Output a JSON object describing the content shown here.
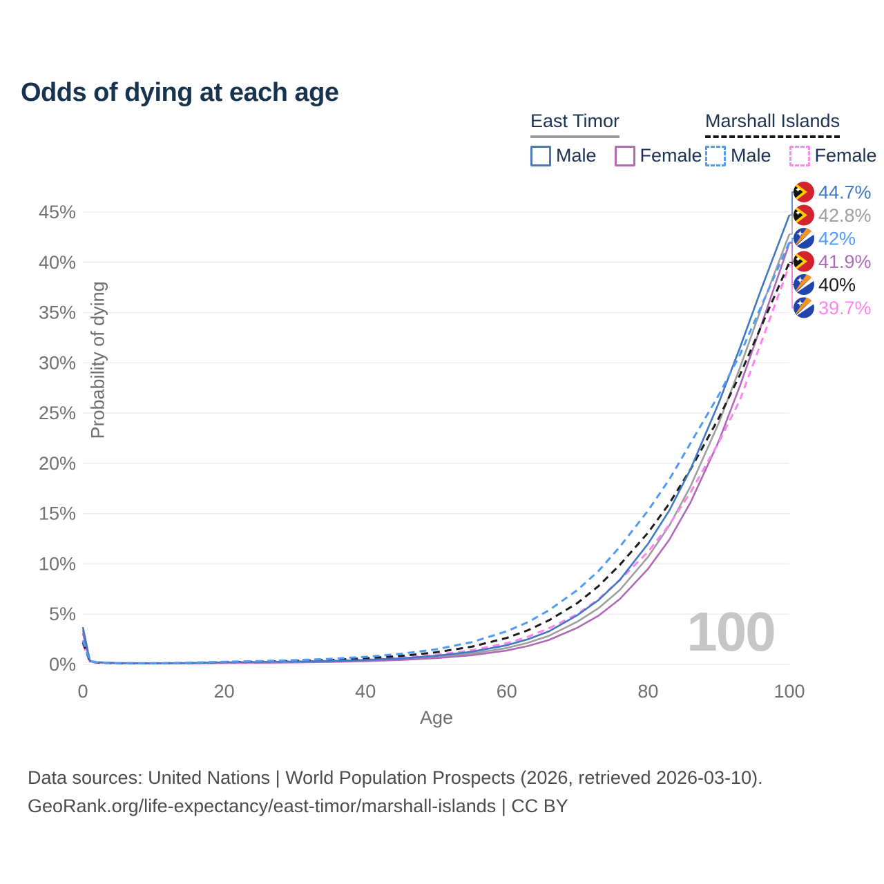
{
  "page": {
    "title": "Odds of dying at each age"
  },
  "legend": {
    "groups": [
      {
        "name": "East Timor",
        "line_style": "solid",
        "underline_color": "#9b9b9b",
        "items": [
          {
            "label": "Male",
            "color": "#4e79b8"
          },
          {
            "label": "Female",
            "color": "#b06bb3"
          }
        ]
      },
      {
        "name": "Marshall Islands",
        "line_style": "dashed",
        "underline_color": "#161616",
        "items": [
          {
            "label": "Male",
            "color": "#4f9bf8"
          },
          {
            "label": "Female",
            "color": "#ff85f0"
          }
        ]
      }
    ]
  },
  "watermark": "100",
  "footer": {
    "line1": "Data sources: United Nations | World Population Prospects (2026, retrieved 2026-03-10).",
    "line2": "GeoRank.org/life-expectancy/east-timor/marshall-islands | CC BY"
  },
  "chart_data": {
    "type": "line",
    "title": "Odds of dying at each age",
    "xlabel": "Age",
    "ylabel": "Probability of dying",
    "x_ticks": [
      0,
      20,
      40,
      60,
      80,
      100
    ],
    "y_ticks_percent": [
      0,
      5,
      10,
      15,
      20,
      25,
      30,
      35,
      40,
      45
    ],
    "xlim": [
      0,
      100
    ],
    "ylim_percent": [
      0,
      47
    ],
    "grid": "horizontal",
    "x": [
      0,
      1,
      2,
      5,
      10,
      15,
      20,
      25,
      30,
      35,
      40,
      45,
      50,
      55,
      60,
      63,
      66,
      70,
      73,
      76,
      80,
      83,
      86,
      90,
      93,
      96,
      100
    ],
    "series": [
      {
        "name": "East Timor Male",
        "country": "East Timor",
        "sex": "Male",
        "flag": "east-timor",
        "color": "#3f78c5",
        "dashed": false,
        "end_label": "44.7%",
        "end_value": 44.7,
        "values": [
          3.7,
          0.35,
          0.22,
          0.13,
          0.11,
          0.14,
          0.2,
          0.24,
          0.28,
          0.34,
          0.44,
          0.6,
          0.85,
          1.25,
          1.9,
          2.5,
          3.3,
          4.9,
          6.4,
          8.4,
          12.0,
          15.3,
          19.4,
          26.0,
          31.5,
          37.3,
          44.7
        ]
      },
      {
        "name": "East Timor Both sexes",
        "country": "East Timor",
        "sex": "Both",
        "flag": "east-timor",
        "color": "#9e9e9e",
        "dashed": false,
        "end_label": "42.8%",
        "end_value": 42.8,
        "values": [
          3.4,
          0.32,
          0.2,
          0.12,
          0.1,
          0.12,
          0.17,
          0.2,
          0.24,
          0.29,
          0.38,
          0.52,
          0.73,
          1.07,
          1.63,
          2.15,
          2.85,
          4.25,
          5.6,
          7.4,
          10.7,
          13.8,
          17.7,
          24.0,
          29.5,
          35.4,
          42.8
        ]
      },
      {
        "name": "Marshall Islands Male",
        "country": "Marshall Islands",
        "sex": "Male",
        "flag": "marshall-islands",
        "color": "#4f9bf8",
        "dashed": true,
        "end_label": "42%",
        "end_value": 42.0,
        "values": [
          2.4,
          0.3,
          0.2,
          0.13,
          0.12,
          0.17,
          0.26,
          0.33,
          0.42,
          0.55,
          0.75,
          1.05,
          1.5,
          2.2,
          3.3,
          4.2,
          5.4,
          7.4,
          9.3,
          11.7,
          15.3,
          18.4,
          22.0,
          26.8,
          30.8,
          35.6,
          42.0
        ]
      },
      {
        "name": "East Timor Female",
        "country": "East Timor",
        "sex": "Female",
        "flag": "east-timor",
        "color": "#ad6bb5",
        "dashed": false,
        "end_label": "41.9%",
        "end_value": 41.9,
        "values": [
          3.1,
          0.29,
          0.18,
          0.11,
          0.09,
          0.1,
          0.14,
          0.16,
          0.19,
          0.24,
          0.32,
          0.44,
          0.62,
          0.91,
          1.38,
          1.83,
          2.44,
          3.65,
          4.85,
          6.5,
          9.5,
          12.4,
          16.1,
          22.2,
          27.7,
          33.7,
          41.9
        ]
      },
      {
        "name": "Marshall Islands Both sexes",
        "country": "Marshall Islands",
        "sex": "Both",
        "flag": "marshall-islands",
        "color": "#1c1c1c",
        "dashed": true,
        "end_label": "40%",
        "end_value": 40.0,
        "values": [
          2.2,
          0.28,
          0.18,
          0.12,
          0.11,
          0.14,
          0.21,
          0.27,
          0.34,
          0.44,
          0.6,
          0.84,
          1.2,
          1.75,
          2.63,
          3.4,
          4.4,
          6.1,
          7.8,
          9.9,
          13.1,
          16.0,
          19.4,
          24.5,
          28.8,
          33.6,
          40.0
        ]
      },
      {
        "name": "Marshall Islands Female",
        "country": "Marshall Islands",
        "sex": "Female",
        "flag": "marshall-islands",
        "color": "#ff82f0",
        "dashed": true,
        "end_label": "39.7%",
        "end_value": 39.7,
        "values": [
          2.0,
          0.26,
          0.17,
          0.11,
          0.1,
          0.12,
          0.17,
          0.21,
          0.27,
          0.35,
          0.47,
          0.66,
          0.95,
          1.4,
          2.1,
          2.75,
          3.6,
          5.0,
          6.5,
          8.4,
          11.2,
          13.9,
          17.1,
          22.1,
          26.3,
          32.0,
          39.7
        ]
      }
    ]
  }
}
